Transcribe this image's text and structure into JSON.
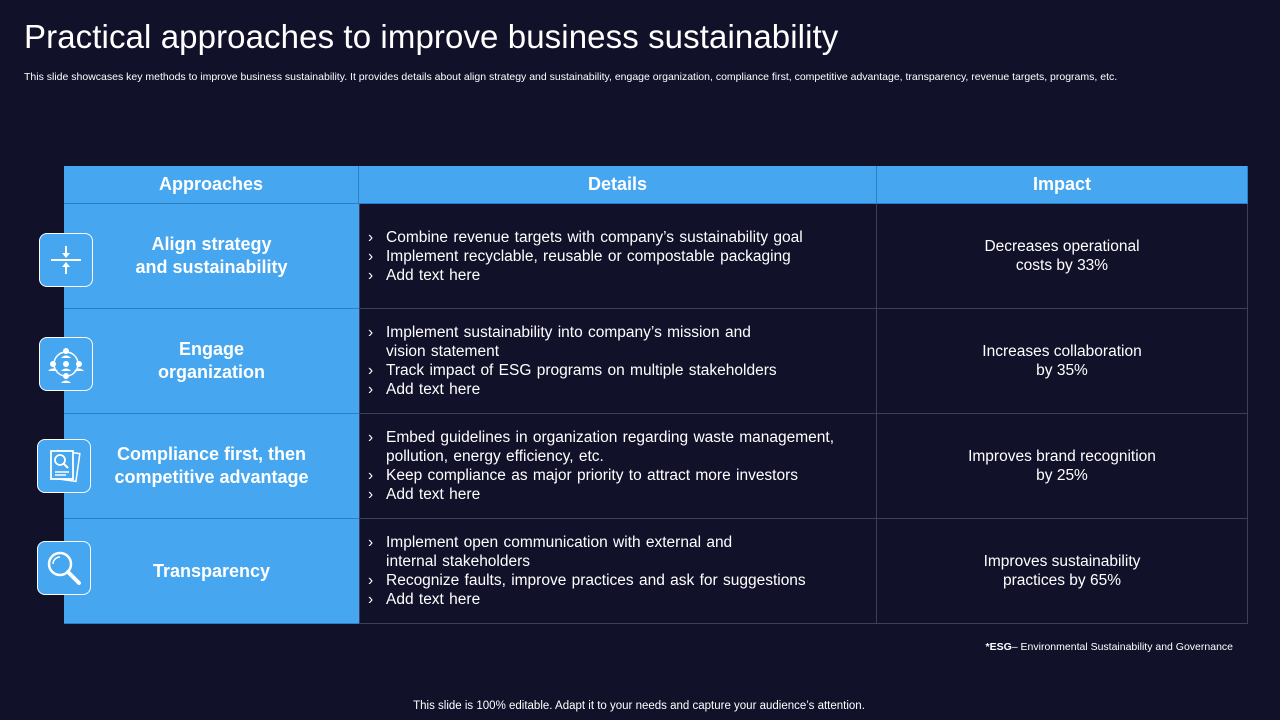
{
  "title": "Practical approaches to improve business sustainability",
  "subtitle": "This slide showcases key methods to improve business sustainability. It provides details about align strategy and sustainability, engage organization, compliance first, competitive advantage, transparency, revenue targets, programs, etc.",
  "table": {
    "headers": [
      "Approaches",
      "Details",
      "Impact"
    ],
    "rows": [
      {
        "approach": [
          "Align strategy",
          "and sustainability"
        ],
        "icon": "align-arrows-icon",
        "details": [
          "Combine revenue targets with company’s sustainability goal",
          "Implement recyclable, reusable or compostable packaging",
          "Add text here"
        ],
        "impact": [
          "Decreases operational",
          "costs by 33%"
        ]
      },
      {
        "approach": [
          "Engage",
          "organization"
        ],
        "icon": "people-network-icon",
        "details": [
          "Implement sustainability into company’s mission and vision statement",
          "Track impact of ESG programs on multiple stakeholders",
          "Add text here"
        ],
        "impact": [
          "Increases collaboration",
          "by 35%"
        ]
      },
      {
        "approach": [
          "Compliance first, then",
          "competitive advantage"
        ],
        "icon": "document-search-icon",
        "details": [
          "Embed guidelines in organization regarding waste management, pollution, energy efficiency, etc.",
          "Keep compliance as major priority to attract more investors",
          "Add text here"
        ],
        "impact": [
          "Improves brand recognition",
          "by 25%"
        ]
      },
      {
        "approach": [
          "Transparency"
        ],
        "icon": "magnifier-icon",
        "details": [
          "Implement open communication with external and internal stakeholders",
          "Recognize faults, improve practices and ask for suggestions",
          "Add text here"
        ],
        "impact": [
          "Improves sustainability",
          "practices by 65%"
        ]
      }
    ]
  },
  "bullet": "›",
  "footnote": {
    "abbr": "*ESG",
    "text": "– Environmental Sustainability and Governance"
  },
  "footer": "This slide is 100% editable. Adapt it to your needs and capture your audience’s attention.",
  "colors": {
    "background": "#12112a",
    "accent": "#46a6f0",
    "text": "#ffffff"
  }
}
